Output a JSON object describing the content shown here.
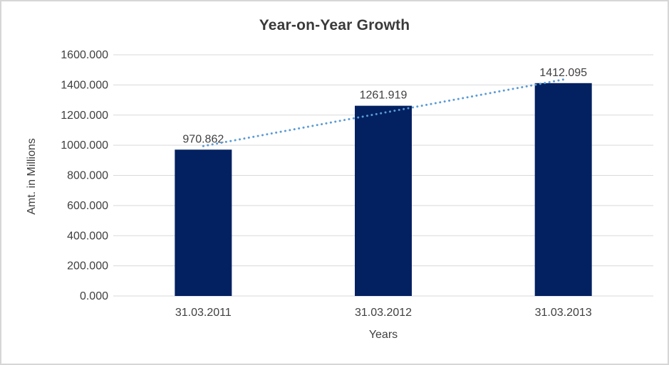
{
  "chart_data": {
    "type": "bar",
    "title": "Year-on-Year Growth",
    "xlabel": "Years",
    "ylabel": "Amt. in Millions",
    "categories": [
      "31.03.2011",
      "31.03.2012",
      "31.03.2013"
    ],
    "values": [
      970.862,
      1261.919,
      1412.095
    ],
    "data_labels": [
      "970.862",
      "1261.919",
      "1412.095"
    ],
    "y_ticks": [
      "0.000",
      "200.000",
      "400.000",
      "600.000",
      "800.000",
      "1000.000",
      "1200.000",
      "1400.000",
      "1600.000"
    ],
    "ylim": [
      0,
      1600
    ],
    "grid": true,
    "legend_position": "none",
    "trendline": {
      "type": "linear",
      "style": "dotted"
    },
    "colors": {
      "bar": "#032161",
      "trendline": "#5b9bd5",
      "gridline": "#d9d9d9",
      "axis_line": "#d9d9d9",
      "label_text": "#404040",
      "title_text": "#3a3a3a",
      "border": "#d6d6d6"
    }
  }
}
